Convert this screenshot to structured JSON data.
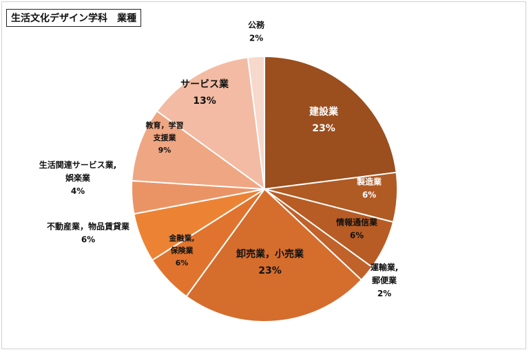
{
  "chart_data": {
    "type": "pie",
    "title": "生活文化デザイン学科　業種",
    "slices": [
      {
        "label": "建設業",
        "value": 23,
        "value_label": "23%",
        "color": "#9b4e1e",
        "label_color": "#ffffff"
      },
      {
        "label": "製造業",
        "value": 6,
        "value_label": "6%",
        "color": "#b05a24",
        "label_color": "#ffffff"
      },
      {
        "label": "情報通信業",
        "value": 6,
        "value_label": "6%",
        "color": "#b85c25",
        "label_color": "#111111"
      },
      {
        "label": "運輸業,郵便業",
        "value": 2,
        "value_label": "2%",
        "color": "#c0622a",
        "label_color": "#111111"
      },
      {
        "label": "卸売業，小売業",
        "value": 23,
        "value_label": "23%",
        "color": "#d56d2d",
        "label_color": "#111111"
      },
      {
        "label": "金融業,保険業",
        "value": 6,
        "value_label": "6%",
        "color": "#e0742f",
        "label_color": "#111111"
      },
      {
        "label": "不動産業，物品賃貸業",
        "value": 6,
        "value_label": "6%",
        "color": "#ec8334",
        "label_color": "#111111"
      },
      {
        "label": "生活関連サービス業,娯楽業",
        "value": 4,
        "value_label": "4%",
        "color": "#ea9466",
        "label_color": "#111111"
      },
      {
        "label": "教育，学習支援業",
        "value": 9,
        "value_label": "9%",
        "color": "#efa682",
        "label_color": "#111111"
      },
      {
        "label": "サービス業",
        "value": 13,
        "value_label": "13%",
        "color": "#f3bba3",
        "label_color": "#111111"
      },
      {
        "label": "公務",
        "value": 2,
        "value_label": "2%",
        "color": "#f6d8cc",
        "label_color": "#111111"
      }
    ],
    "label_lines": [
      [
        "建設業",
        "23%"
      ],
      [
        "製造業",
        "6%"
      ],
      [
        "情報通信業",
        "6%"
      ],
      [
        "運輸業,",
        "郵便業",
        "2%"
      ],
      [
        "卸売業，小売業",
        "23%"
      ],
      [
        "金融業,",
        "保険業",
        "6%"
      ],
      [
        "不動産業，物品賃貸業",
        "6%"
      ],
      [
        "生活関連サービス業,",
        "娯楽業",
        "4%"
      ],
      [
        "教育，学習",
        "支援業",
        "9%"
      ],
      [
        "サービス業",
        "13%"
      ],
      [
        "公務",
        "2%"
      ]
    ]
  }
}
